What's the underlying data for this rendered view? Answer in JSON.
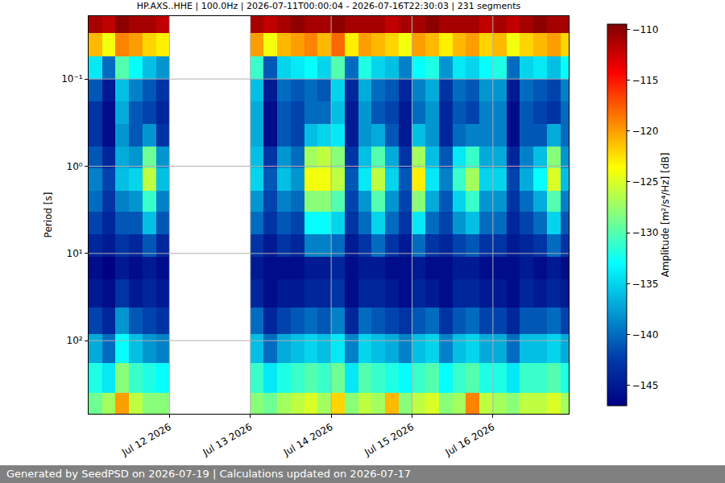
{
  "chart_data": {
    "type": "heatmap",
    "title": "HP.AXS..HHE | 100.0Hz | 2026-07-11T00:00:04 - 2026-07-16T22:30:03 | 231 segments",
    "ylabel": "Period [s]",
    "log": "y",
    "grid": true,
    "xlim": [
      "2026-07-11 00:00:04",
      "2026-07-16 22:30:03"
    ],
    "xticks": [
      {
        "value": "2026-07-12",
        "label": "Jul 12 2026"
      },
      {
        "value": "2026-07-13",
        "label": "Jul 13 2026"
      },
      {
        "value": "2026-07-14",
        "label": "Jul 14 2026"
      },
      {
        "value": "2026-07-15",
        "label": "Jul 15 2026"
      },
      {
        "value": "2026-07-16",
        "label": "Jul 16 2026"
      }
    ],
    "ylim": [
      0.019,
      690
    ],
    "yticks": [
      {
        "value": 0.1,
        "label": "10⁻¹"
      },
      {
        "value": 1,
        "label": "10⁰"
      },
      {
        "value": 10,
        "label": "10¹"
      },
      {
        "value": 100,
        "label": "10²"
      }
    ],
    "x": [
      "2026-07-11 02:00",
      "2026-07-11 06:00",
      "2026-07-11 10:00",
      "2026-07-11 14:00",
      "2026-07-11 18:00",
      "2026-07-11 22:00",
      "2026-07-12 02:00",
      "2026-07-12 06:00",
      "2026-07-12 10:00",
      "2026-07-12 14:00",
      "2026-07-12 18:00",
      "2026-07-12 22:00",
      "2026-07-13 02:00",
      "2026-07-13 06:00",
      "2026-07-13 10:00",
      "2026-07-13 14:00",
      "2026-07-13 18:00",
      "2026-07-13 22:00",
      "2026-07-14 02:00",
      "2026-07-14 06:00",
      "2026-07-14 10:00",
      "2026-07-14 14:00",
      "2026-07-14 18:00",
      "2026-07-14 22:00",
      "2026-07-15 02:00",
      "2026-07-15 06:00",
      "2026-07-15 10:00",
      "2026-07-15 14:00",
      "2026-07-15 18:00",
      "2026-07-15 22:00",
      "2026-07-16 02:00",
      "2026-07-16 06:00",
      "2026-07-16 10:00",
      "2026-07-16 14:00",
      "2026-07-16 18:00",
      "2026-07-16 22:00"
    ],
    "y_edges": [
      0.019,
      0.03,
      0.055,
      0.1,
      0.18,
      0.33,
      0.6,
      1.05,
      1.9,
      3.3,
      6,
      11,
      20,
      42,
      85,
      180,
      400,
      690
    ],
    "z": [
      [
        -111,
        -112,
        -110,
        -111,
        -111,
        -112,
        null,
        null,
        null,
        null,
        null,
        null,
        -111,
        -112,
        -111,
        -110,
        -111,
        -111,
        -110,
        -111,
        -111,
        -111,
        -112,
        -111,
        -111,
        -110,
        -111,
        -111,
        -111,
        -112,
        -111,
        -112,
        -111,
        -110,
        -111,
        -111
      ],
      [
        -121,
        -124,
        -119,
        -120,
        -122,
        -123,
        null,
        null,
        null,
        null,
        null,
        null,
        -120,
        -124,
        -121,
        -120,
        -119,
        -121,
        -118,
        -123,
        -120,
        -121,
        -122,
        -124,
        -120,
        -121,
        -123,
        -121,
        -120,
        -122,
        -121,
        -124,
        -122,
        -121,
        -120,
        -122
      ],
      [
        -134,
        -140,
        -130,
        -133,
        -136,
        -138,
        null,
        null,
        null,
        null,
        null,
        null,
        -131,
        -141,
        -135,
        -134,
        -133,
        -135,
        -130,
        -140,
        -132,
        -135,
        -136,
        -139,
        -133,
        -132,
        -138,
        -134,
        -135,
        -133,
        -132,
        -140,
        -135,
        -134,
        -136,
        -133
      ],
      [
        -141,
        -145,
        -136,
        -139,
        -141,
        -143,
        null,
        null,
        null,
        null,
        null,
        null,
        -136,
        -145,
        -140,
        -141,
        -140,
        -141,
        -135,
        -144,
        -137,
        -140,
        -141,
        -144,
        -139,
        -137,
        -143,
        -140,
        -141,
        -138,
        -138,
        -145,
        -140,
        -141,
        -142,
        -139
      ],
      [
        -143,
        -146,
        -137,
        -141,
        -142,
        -144,
        null,
        null,
        null,
        null,
        null,
        null,
        -137,
        -146,
        -141,
        -142,
        -140,
        -140,
        -136,
        -145,
        -138,
        -141,
        -142,
        -145,
        -140,
        -138,
        -144,
        -141,
        -142,
        -139,
        -139,
        -146,
        -141,
        -142,
        -143,
        -140
      ],
      [
        -143,
        -146,
        -138,
        -141,
        -138,
        -143,
        null,
        null,
        null,
        null,
        null,
        null,
        -137,
        -146,
        -141,
        -142,
        -136,
        -135,
        -134,
        -145,
        -138,
        -137,
        -141,
        -145,
        -136,
        -138,
        -144,
        -140,
        -139,
        -139,
        -139,
        -146,
        -141,
        -141,
        -137,
        -140
      ],
      [
        -141,
        -144,
        -137,
        -138,
        -129,
        -138,
        null,
        null,
        null,
        null,
        null,
        null,
        -136,
        -143,
        -138,
        -140,
        -127,
        -126,
        -128,
        -143,
        -136,
        -130,
        -137,
        -143,
        -127,
        -136,
        -141,
        -134,
        -131,
        -137,
        -137,
        -144,
        -139,
        -136,
        -128,
        -138
      ],
      [
        -139,
        -142,
        -136,
        -135,
        -126,
        -136,
        null,
        null,
        null,
        null,
        null,
        null,
        -135,
        -141,
        -136,
        -138,
        -124,
        -124,
        -126,
        -141,
        -134,
        -126,
        -135,
        -141,
        -123,
        -134,
        -139,
        -131,
        -127,
        -135,
        -135,
        -142,
        -137,
        -133,
        -125,
        -136
      ],
      [
        -140,
        -143,
        -139,
        -138,
        -131,
        -139,
        null,
        null,
        null,
        null,
        null,
        null,
        -138,
        -142,
        -139,
        -140,
        -128,
        -128,
        -130,
        -142,
        -138,
        -130,
        -138,
        -142,
        -128,
        -137,
        -141,
        -135,
        -131,
        -138,
        -138,
        -143,
        -140,
        -137,
        -130,
        -139
      ],
      [
        -142,
        -144,
        -141,
        -141,
        -136,
        -141,
        null,
        null,
        null,
        null,
        null,
        null,
        -140,
        -143,
        -141,
        -142,
        -133,
        -133,
        -135,
        -143,
        -140,
        -135,
        -140,
        -143,
        -134,
        -140,
        -142,
        -138,
        -136,
        -140,
        -140,
        -144,
        -142,
        -140,
        -135,
        -141
      ],
      [
        -144,
        -145,
        -143,
        -144,
        -141,
        -144,
        null,
        null,
        null,
        null,
        null,
        null,
        -143,
        -145,
        -143,
        -144,
        -139,
        -139,
        -140,
        -145,
        -143,
        -140,
        -143,
        -145,
        -140,
        -143,
        -144,
        -142,
        -141,
        -143,
        -143,
        -145,
        -144,
        -143,
        -140,
        -143
      ],
      [
        -146,
        -147,
        -145,
        -146,
        -145,
        -146,
        null,
        null,
        null,
        null,
        null,
        null,
        -145,
        -146,
        -146,
        -146,
        -145,
        -145,
        -144,
        -146,
        -145,
        -145,
        -146,
        -146,
        -145,
        -146,
        -146,
        -145,
        -145,
        -146,
        -146,
        -146,
        -145,
        -146,
        -145,
        -146
      ],
      [
        -145,
        -146,
        -143,
        -145,
        -144,
        -145,
        null,
        null,
        null,
        null,
        null,
        null,
        -144,
        -146,
        -145,
        -145,
        -144,
        -144,
        -143,
        -146,
        -144,
        -144,
        -145,
        -146,
        -144,
        -145,
        -146,
        -144,
        -144,
        -145,
        -145,
        -146,
        -144,
        -145,
        -144,
        -145
      ],
      [
        -142,
        -144,
        -138,
        -141,
        -142,
        -143,
        null,
        null,
        null,
        null,
        null,
        null,
        -140,
        -144,
        -142,
        -141,
        -140,
        -141,
        -139,
        -144,
        -140,
        -141,
        -142,
        -143,
        -141,
        -140,
        -143,
        -141,
        -140,
        -142,
        -142,
        -144,
        -141,
        -141,
        -140,
        -142
      ],
      [
        -137,
        -140,
        -133,
        -136,
        -138,
        -139,
        null,
        null,
        null,
        null,
        null,
        null,
        -136,
        -140,
        -137,
        -136,
        -135,
        -136,
        -134,
        -139,
        -135,
        -136,
        -137,
        -139,
        -136,
        -135,
        -139,
        -136,
        -135,
        -137,
        -137,
        -140,
        -136,
        -136,
        -135,
        -137
      ],
      [
        -132,
        -134,
        -128,
        -131,
        -132,
        -133,
        null,
        null,
        null,
        null,
        null,
        null,
        -131,
        -134,
        -132,
        -131,
        -130,
        -131,
        -129,
        -134,
        -130,
        -131,
        -132,
        -133,
        -131,
        -130,
        -133,
        -131,
        -130,
        -132,
        -132,
        -134,
        -131,
        -131,
        -130,
        -132
      ],
      [
        -129,
        -127,
        -120,
        -126,
        -128,
        -128,
        null,
        null,
        null,
        null,
        null,
        null,
        -128,
        -129,
        -127,
        -126,
        -125,
        -127,
        -122,
        -128,
        -126,
        -127,
        -121,
        -128,
        -126,
        -125,
        -128,
        -127,
        -119,
        -126,
        -127,
        -128,
        -126,
        -126,
        -125,
        -127
      ]
    ],
    "colorbar": {
      "title": "Amplitude [m²/s⁴/Hz] [dB]",
      "range": [
        -147,
        -109.5
      ],
      "ticks": [
        {
          "value": -145,
          "label": "−145"
        },
        {
          "value": -140,
          "label": "−140"
        },
        {
          "value": -135,
          "label": "−135"
        },
        {
          "value": -130,
          "label": "−130"
        },
        {
          "value": -125,
          "label": "−125"
        },
        {
          "value": -120,
          "label": "−120"
        },
        {
          "value": -115,
          "label": "−115"
        },
        {
          "value": -110,
          "label": "−110"
        }
      ]
    }
  },
  "footer": "Generated by SeedPSD on 2026-07-19 | Calculations updated on 2026-07-17"
}
